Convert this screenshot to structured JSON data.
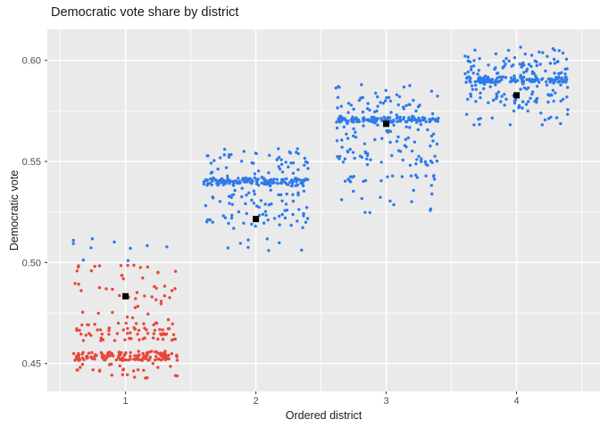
{
  "chart_data": {
    "type": "scatter",
    "title": "Democratic vote share by district",
    "xlabel": "Ordered district",
    "ylabel": "Democratic vote",
    "xlim": [
      0.4,
      4.64
    ],
    "ylim": [
      0.4362,
      0.6153
    ],
    "x_ticks": [
      1,
      2,
      3,
      4
    ],
    "x_tick_labels": [
      "1",
      "2",
      "3",
      "4"
    ],
    "y_ticks": [
      0.45,
      0.5,
      0.55,
      0.6
    ],
    "y_tick_labels": [
      "0.45",
      "0.50",
      "0.55",
      "0.60"
    ],
    "x_minor": [
      0.5,
      1.5,
      2.5,
      3.5,
      4.5
    ],
    "y_minor": [
      0.475,
      0.525,
      0.575
    ],
    "grid": true,
    "legend": "none",
    "panel_bg": "#EAEAEA",
    "grid_color": "#FFFFFF",
    "tick_mark_color": "#333333",
    "tick_label_color": "#4D4D4D",
    "color_threshold": 0.5,
    "point_color_below_threshold": "#E8473B",
    "point_color_above_threshold": "#2D7BEA",
    "mean_marker_color": "#000000",
    "jitter_halfwidth": 0.4,
    "seed": 42,
    "districts": [
      {
        "x": 1,
        "mean": 0.4833,
        "bands": [
          [
            0.4522,
            55
          ],
          [
            0.4538,
            48
          ],
          [
            0.4554,
            34
          ],
          [
            0.462,
            18
          ],
          [
            0.4646,
            20
          ],
          [
            0.467,
            20
          ],
          [
            0.4696,
            12
          ],
          [
            0.498,
            9
          ]
        ],
        "diffuse": [
          [
            0.4428,
            0.4508,
            26
          ],
          [
            0.4715,
            0.496,
            40
          ],
          [
            0.5005,
            0.512,
            10
          ]
        ]
      },
      {
        "x": 2,
        "mean": 0.5215,
        "bands": [
          [
            0.5398,
            55
          ],
          [
            0.5412,
            45
          ],
          [
            0.5386,
            28
          ]
        ],
        "diffuse": [
          [
            0.505,
            0.516,
            8
          ],
          [
            0.516,
            0.536,
            75
          ],
          [
            0.536,
            0.5525,
            55
          ],
          [
            0.5525,
            0.5565,
            16
          ]
        ]
      },
      {
        "x": 3,
        "mean": 0.5686,
        "bands": [
          [
            0.57,
            58
          ],
          [
            0.5713,
            45
          ],
          [
            0.5425,
            12
          ],
          [
            0.5405,
            8
          ]
        ],
        "diffuse": [
          [
            0.524,
            0.539,
            14
          ],
          [
            0.548,
            0.5672,
            75
          ],
          [
            0.5672,
            0.5832,
            60
          ],
          [
            0.5832,
            0.588,
            9
          ]
        ]
      },
      {
        "x": 4,
        "mean": 0.5827,
        "bands": [
          [
            0.5898,
            55
          ],
          [
            0.5911,
            40
          ]
        ],
        "diffuse": [
          [
            0.568,
            0.579,
            25
          ],
          [
            0.579,
            0.6,
            138
          ],
          [
            0.6,
            0.6075,
            20
          ]
        ]
      }
    ]
  }
}
